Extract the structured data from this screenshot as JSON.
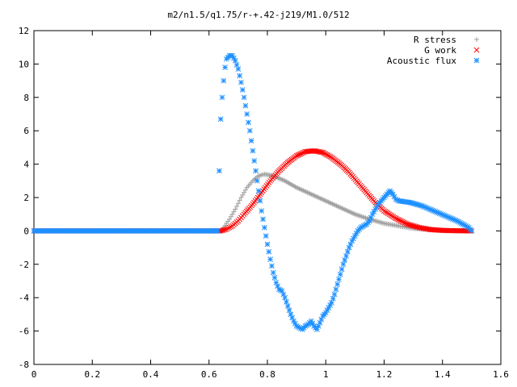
{
  "chart_data": {
    "type": "scatter",
    "title": "m2/n1.5/q1.75/r-+.42-j219/M1.0/512",
    "xlabel": "",
    "ylabel": "",
    "xlim": [
      0,
      1.6
    ],
    "ylim": [
      -8,
      12
    ],
    "x_ticks": [
      "0",
      "0.2",
      "0.4",
      "0.6",
      "0.8",
      "1",
      "1.2",
      "1.4",
      "1.6"
    ],
    "y_ticks": [
      "-8",
      "-6",
      "-4",
      "-2",
      "0",
      "2",
      "4",
      "6",
      "8",
      "10",
      "12"
    ],
    "legend_position": "top-right",
    "series": [
      {
        "name": "R stress",
        "marker": "+",
        "color": "#a0a0a0",
        "points": [
          [
            0.0,
            0
          ],
          [
            0.1,
            0
          ],
          [
            0.2,
            0
          ],
          [
            0.3,
            0
          ],
          [
            0.4,
            0
          ],
          [
            0.5,
            0
          ],
          [
            0.6,
            0
          ],
          [
            0.64,
            0
          ],
          [
            0.65,
            0.2
          ],
          [
            0.67,
            0.7
          ],
          [
            0.69,
            1.3
          ],
          [
            0.71,
            2.0
          ],
          [
            0.73,
            2.6
          ],
          [
            0.75,
            3.0
          ],
          [
            0.77,
            3.3
          ],
          [
            0.79,
            3.4
          ],
          [
            0.82,
            3.3
          ],
          [
            0.86,
            3.0
          ],
          [
            0.9,
            2.6
          ],
          [
            0.95,
            2.2
          ],
          [
            1.0,
            1.8
          ],
          [
            1.05,
            1.4
          ],
          [
            1.1,
            1.0
          ],
          [
            1.15,
            0.7
          ],
          [
            1.2,
            0.45
          ],
          [
            1.25,
            0.3
          ],
          [
            1.3,
            0.15
          ],
          [
            1.35,
            0.08
          ],
          [
            1.4,
            0.03
          ],
          [
            1.45,
            0.01
          ],
          [
            1.5,
            0
          ]
        ]
      },
      {
        "name": "G work",
        "marker": "x",
        "color": "#ff0000",
        "points": [
          [
            0.0,
            0
          ],
          [
            0.1,
            0
          ],
          [
            0.2,
            0
          ],
          [
            0.3,
            0
          ],
          [
            0.4,
            0
          ],
          [
            0.5,
            0
          ],
          [
            0.6,
            0
          ],
          [
            0.64,
            0
          ],
          [
            0.66,
            0.1
          ],
          [
            0.68,
            0.3
          ],
          [
            0.7,
            0.6
          ],
          [
            0.72,
            1.0
          ],
          [
            0.75,
            1.6
          ],
          [
            0.78,
            2.3
          ],
          [
            0.81,
            3.0
          ],
          [
            0.84,
            3.6
          ],
          [
            0.87,
            4.1
          ],
          [
            0.9,
            4.5
          ],
          [
            0.93,
            4.75
          ],
          [
            0.96,
            4.8
          ],
          [
            0.99,
            4.7
          ],
          [
            1.02,
            4.4
          ],
          [
            1.05,
            4.0
          ],
          [
            1.08,
            3.5
          ],
          [
            1.11,
            2.9
          ],
          [
            1.14,
            2.3
          ],
          [
            1.17,
            1.7
          ],
          [
            1.2,
            1.2
          ],
          [
            1.24,
            0.75
          ],
          [
            1.28,
            0.4
          ],
          [
            1.32,
            0.2
          ],
          [
            1.36,
            0.08
          ],
          [
            1.4,
            0.03
          ],
          [
            1.45,
            0.01
          ],
          [
            1.5,
            0
          ]
        ]
      },
      {
        "name": "Acoustic flux",
        "marker": "*",
        "color": "#1e90ff",
        "points": [
          [
            0.0,
            0
          ],
          [
            0.1,
            0
          ],
          [
            0.2,
            0
          ],
          [
            0.3,
            0
          ],
          [
            0.4,
            0
          ],
          [
            0.5,
            0
          ],
          [
            0.6,
            0
          ],
          [
            0.63,
            0
          ],
          [
            0.635,
            3.6
          ],
          [
            0.64,
            6.7
          ],
          [
            0.645,
            8.0
          ],
          [
            0.65,
            9.0
          ],
          [
            0.655,
            9.8
          ],
          [
            0.66,
            10.3
          ],
          [
            0.67,
            10.5
          ],
          [
            0.68,
            10.5
          ],
          [
            0.69,
            10.2
          ],
          [
            0.7,
            9.7
          ],
          [
            0.71,
            8.9
          ],
          [
            0.72,
            8.0
          ],
          [
            0.73,
            7.0
          ],
          [
            0.74,
            6.0
          ],
          [
            0.75,
            4.8
          ],
          [
            0.76,
            3.6
          ],
          [
            0.77,
            2.4
          ],
          [
            0.78,
            1.2
          ],
          [
            0.79,
            0.2
          ],
          [
            0.8,
            -0.8
          ],
          [
            0.81,
            -1.7
          ],
          [
            0.82,
            -2.5
          ],
          [
            0.83,
            -3.1
          ],
          [
            0.84,
            -3.5
          ],
          [
            0.85,
            -3.6
          ],
          [
            0.86,
            -4.0
          ],
          [
            0.87,
            -4.5
          ],
          [
            0.88,
            -5.0
          ],
          [
            0.89,
            -5.4
          ],
          [
            0.9,
            -5.7
          ],
          [
            0.91,
            -5.8
          ],
          [
            0.92,
            -5.9
          ],
          [
            0.93,
            -5.7
          ],
          [
            0.94,
            -5.6
          ],
          [
            0.95,
            -5.4
          ],
          [
            0.96,
            -5.7
          ],
          [
            0.97,
            -5.9
          ],
          [
            0.98,
            -5.5
          ],
          [
            0.99,
            -5.1
          ],
          [
            1.0,
            -4.9
          ],
          [
            1.01,
            -4.6
          ],
          [
            1.02,
            -4.3
          ],
          [
            1.03,
            -3.8
          ],
          [
            1.04,
            -3.2
          ],
          [
            1.05,
            -2.6
          ],
          [
            1.06,
            -2.0
          ],
          [
            1.07,
            -1.5
          ],
          [
            1.08,
            -1.0
          ],
          [
            1.09,
            -0.6
          ],
          [
            1.1,
            -0.3
          ],
          [
            1.11,
            0.0
          ],
          [
            1.12,
            0.2
          ],
          [
            1.13,
            0.3
          ],
          [
            1.14,
            0.4
          ],
          [
            1.15,
            0.6
          ],
          [
            1.16,
            1.0
          ],
          [
            1.17,
            1.3
          ],
          [
            1.18,
            1.6
          ],
          [
            1.19,
            1.8
          ],
          [
            1.2,
            2.0
          ],
          [
            1.21,
            2.2
          ],
          [
            1.22,
            2.4
          ],
          [
            1.23,
            2.2
          ],
          [
            1.24,
            1.9
          ],
          [
            1.25,
            1.8
          ],
          [
            1.27,
            1.75
          ],
          [
            1.29,
            1.7
          ],
          [
            1.31,
            1.6
          ],
          [
            1.33,
            1.5
          ],
          [
            1.35,
            1.35
          ],
          [
            1.37,
            1.2
          ],
          [
            1.39,
            1.05
          ],
          [
            1.41,
            0.9
          ],
          [
            1.43,
            0.75
          ],
          [
            1.45,
            0.6
          ],
          [
            1.47,
            0.4
          ],
          [
            1.49,
            0.2
          ],
          [
            1.5,
            0
          ]
        ]
      }
    ]
  }
}
